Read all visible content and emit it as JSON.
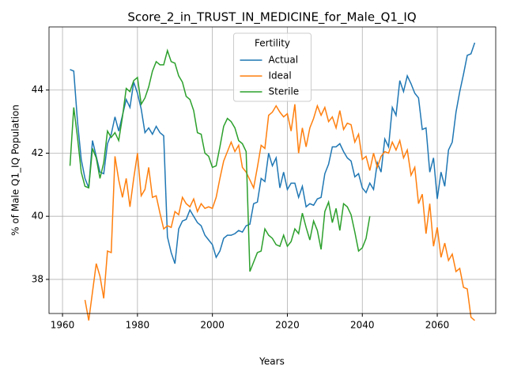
{
  "chart_data": {
    "type": "line",
    "title": "Score_2_in_TRUST_IN_MEDICINE_for_Male_Q1_IQ",
    "xlabel": "Years",
    "ylabel": "% of Male Q1_IQ Population",
    "legend_title": "Fertility",
    "legend": "upper center",
    "grid": true,
    "xlim": [
      1956.4,
      2075.6
    ],
    "ylim": [
      36.92,
      46.0
    ],
    "xticks": [
      1960,
      1980,
      2000,
      2020,
      2040,
      2060
    ],
    "yticks": [
      38,
      40,
      42,
      44
    ],
    "x": [
      1962,
      1963,
      1964,
      1965,
      1966,
      1967,
      1968,
      1969,
      1970,
      1971,
      1972,
      1973,
      1974,
      1975,
      1976,
      1977,
      1978,
      1979,
      1980,
      1981,
      1982,
      1983,
      1984,
      1985,
      1986,
      1987,
      1988,
      1989,
      1990,
      1991,
      1992,
      1993,
      1994,
      1995,
      1996,
      1997,
      1998,
      1999,
      2000,
      2001,
      2002,
      2003,
      2004,
      2005,
      2006,
      2007,
      2008,
      2009,
      2010,
      2011,
      2012,
      2013,
      2014,
      2015,
      2016,
      2017,
      2018,
      2019,
      2020,
      2021,
      2022,
      2023,
      2024,
      2025,
      2026,
      2027,
      2028,
      2029,
      2030,
      2031,
      2032,
      2033,
      2034,
      2035,
      2036,
      2037,
      2038,
      2039,
      2040,
      2041,
      2042,
      2043,
      2044,
      2045,
      2046,
      2047,
      2048,
      2049,
      2050,
      2051,
      2052,
      2053,
      2054,
      2055,
      2056,
      2057,
      2058,
      2059,
      2060,
      2061,
      2062,
      2063,
      2064,
      2065,
      2066,
      2067,
      2068,
      2069,
      2070
    ],
    "series": [
      {
        "name": "Actual",
        "color": "#1f77b4",
        "values": [
          44.65,
          44.6,
          43.0,
          41.8,
          41.2,
          40.9,
          42.4,
          41.9,
          41.4,
          41.35,
          42.3,
          42.6,
          43.15,
          42.7,
          43.2,
          43.7,
          43.45,
          44.25,
          43.9,
          43.4,
          42.65,
          42.8,
          42.6,
          42.85,
          42.65,
          42.55,
          39.35,
          38.85,
          38.5,
          39.6,
          39.85,
          39.9,
          40.2,
          40.0,
          39.8,
          39.7,
          39.4,
          39.25,
          39.1,
          38.7,
          38.9,
          39.3,
          39.4,
          39.4,
          39.45,
          39.55,
          39.5,
          39.7,
          39.75,
          40.4,
          40.45,
          41.2,
          41.1,
          42.0,
          41.6,
          41.85,
          40.9,
          41.4,
          40.85,
          41.05,
          41.05,
          40.6,
          40.95,
          40.3,
          40.4,
          40.35,
          40.55,
          40.6,
          41.35,
          41.65,
          42.2,
          42.2,
          42.3,
          42.05,
          41.85,
          41.75,
          41.25,
          41.35,
          40.9,
          40.75,
          41.05,
          40.85,
          41.7,
          41.4,
          42.45,
          42.2,
          43.45,
          43.2,
          44.3,
          43.95,
          44.45,
          44.2,
          43.9,
          43.75,
          42.75,
          42.8,
          41.4,
          41.85,
          40.55,
          41.4,
          40.95,
          42.1,
          42.35,
          43.3,
          43.95,
          44.5,
          45.1,
          45.15,
          45.5
        ]
      },
      {
        "name": "Ideal",
        "color": "#ff7f0e",
        "values": [
          null,
          null,
          null,
          null,
          37.35,
          36.7,
          37.6,
          38.5,
          38.1,
          37.4,
          38.9,
          38.85,
          41.9,
          41.15,
          40.6,
          41.2,
          40.3,
          41.2,
          42.0,
          40.65,
          40.85,
          41.55,
          40.6,
          40.65,
          40.1,
          39.6,
          39.7,
          39.65,
          40.15,
          40.05,
          40.6,
          40.4,
          40.3,
          40.55,
          40.15,
          40.4,
          40.25,
          40.3,
          40.25,
          40.6,
          41.2,
          41.75,
          42.05,
          42.35,
          42.05,
          42.25,
          41.55,
          41.4,
          41.15,
          40.9,
          41.55,
          42.25,
          42.15,
          43.2,
          43.3,
          43.5,
          43.3,
          43.15,
          43.25,
          42.7,
          43.55,
          42.0,
          42.8,
          42.2,
          42.8,
          43.1,
          43.5,
          43.2,
          43.45,
          43.0,
          43.15,
          42.8,
          43.35,
          42.75,
          42.95,
          42.9,
          42.35,
          42.6,
          41.8,
          41.9,
          41.45,
          42.0,
          41.55,
          41.9,
          42.05,
          42.0,
          42.35,
          42.1,
          42.4,
          41.85,
          42.1,
          41.3,
          41.55,
          40.4,
          40.7,
          39.45,
          40.4,
          39.05,
          39.65,
          38.7,
          39.15,
          38.6,
          38.8,
          38.25,
          38.35,
          37.75,
          37.7,
          36.8,
          36.7
        ]
      },
      {
        "name": "Sterile",
        "color": "#2ca02c",
        "values": [
          41.6,
          43.45,
          42.5,
          41.4,
          40.95,
          40.9,
          42.15,
          41.85,
          41.2,
          41.7,
          42.7,
          42.5,
          42.65,
          42.4,
          43.15,
          44.05,
          43.95,
          44.3,
          44.4,
          43.55,
          43.75,
          44.1,
          44.6,
          44.9,
          44.8,
          44.8,
          45.25,
          44.9,
          44.85,
          44.45,
          44.25,
          43.8,
          43.7,
          43.35,
          42.65,
          42.6,
          42.0,
          41.9,
          41.55,
          41.6,
          42.2,
          42.85,
          43.1,
          43.0,
          42.8,
          42.4,
          42.3,
          42.05,
          38.25,
          38.55,
          38.85,
          38.9,
          39.6,
          39.4,
          39.3,
          39.1,
          39.05,
          39.4,
          39.05,
          39.2,
          39.6,
          39.45,
          40.1,
          39.65,
          39.25,
          39.85,
          39.55,
          38.95,
          40.15,
          40.45,
          39.8,
          40.25,
          39.55,
          40.4,
          40.3,
          40.05,
          39.5,
          38.9,
          39.0,
          39.3,
          40.0,
          null,
          null,
          null,
          null,
          null,
          null,
          null,
          null,
          null,
          null,
          null,
          null,
          null,
          null,
          null,
          null,
          null,
          null,
          null,
          null,
          null,
          null,
          null,
          null,
          null,
          null,
          null,
          null
        ]
      }
    ]
  }
}
